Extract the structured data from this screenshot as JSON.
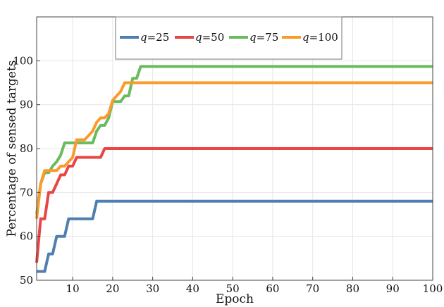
{
  "chart_data": {
    "type": "line",
    "title": "",
    "xlabel": "Epoch",
    "ylabel": "Percentage of sensed targets",
    "xlim": [
      1,
      100
    ],
    "ylim": [
      50,
      110
    ],
    "xticks": [
      10,
      20,
      30,
      40,
      50,
      60,
      70,
      80,
      90,
      100
    ],
    "yticks": [
      50,
      60,
      70,
      80,
      90,
      100
    ],
    "grid": true,
    "legend": "top-center",
    "series": [
      {
        "name": "q=25",
        "color": "#4e7fae",
        "points": [
          [
            1,
            52
          ],
          [
            3,
            52
          ],
          [
            4,
            56
          ],
          [
            5,
            56
          ],
          [
            6,
            60
          ],
          [
            8,
            60
          ],
          [
            9,
            64
          ],
          [
            15,
            64
          ],
          [
            16,
            68
          ],
          [
            100,
            68
          ]
        ]
      },
      {
        "name": "q=50",
        "color": "#e84646",
        "points": [
          [
            1,
            54
          ],
          [
            2,
            64
          ],
          [
            3,
            64
          ],
          [
            4,
            70
          ],
          [
            5,
            70
          ],
          [
            6,
            72
          ],
          [
            7,
            74
          ],
          [
            8,
            74
          ],
          [
            9,
            76
          ],
          [
            10,
            76
          ],
          [
            11,
            78
          ],
          [
            17,
            78
          ],
          [
            18,
            80
          ],
          [
            100,
            80
          ]
        ]
      },
      {
        "name": "q=75",
        "color": "#6aba5e",
        "points": [
          [
            1,
            65
          ],
          [
            2,
            72
          ],
          [
            3,
            74.5
          ],
          [
            4,
            74.5
          ],
          [
            5,
            76
          ],
          [
            6,
            77
          ],
          [
            7,
            78.5
          ],
          [
            8,
            81.3
          ],
          [
            15,
            81.3
          ],
          [
            16,
            84
          ],
          [
            17,
            85.3
          ],
          [
            18,
            85.3
          ],
          [
            19,
            87
          ],
          [
            20,
            90.7
          ],
          [
            22,
            90.7
          ],
          [
            23,
            92
          ],
          [
            24,
            92
          ],
          [
            25,
            96
          ],
          [
            26,
            96
          ],
          [
            27,
            98.7
          ],
          [
            100,
            98.7
          ]
        ]
      },
      {
        "name": "q=100",
        "color": "#fb9a2c",
        "points": [
          [
            1,
            64
          ],
          [
            2,
            72
          ],
          [
            3,
            75
          ],
          [
            6,
            75
          ],
          [
            7,
            76
          ],
          [
            8,
            76
          ],
          [
            9,
            77
          ],
          [
            10,
            78
          ],
          [
            11,
            82
          ],
          [
            13,
            82
          ],
          [
            14,
            83
          ],
          [
            15,
            84
          ],
          [
            16,
            86
          ],
          [
            17,
            87
          ],
          [
            18,
            87
          ],
          [
            19,
            88
          ],
          [
            20,
            91
          ],
          [
            21,
            92
          ],
          [
            22,
            93
          ],
          [
            23,
            95
          ],
          [
            100,
            95
          ]
        ]
      }
    ]
  }
}
